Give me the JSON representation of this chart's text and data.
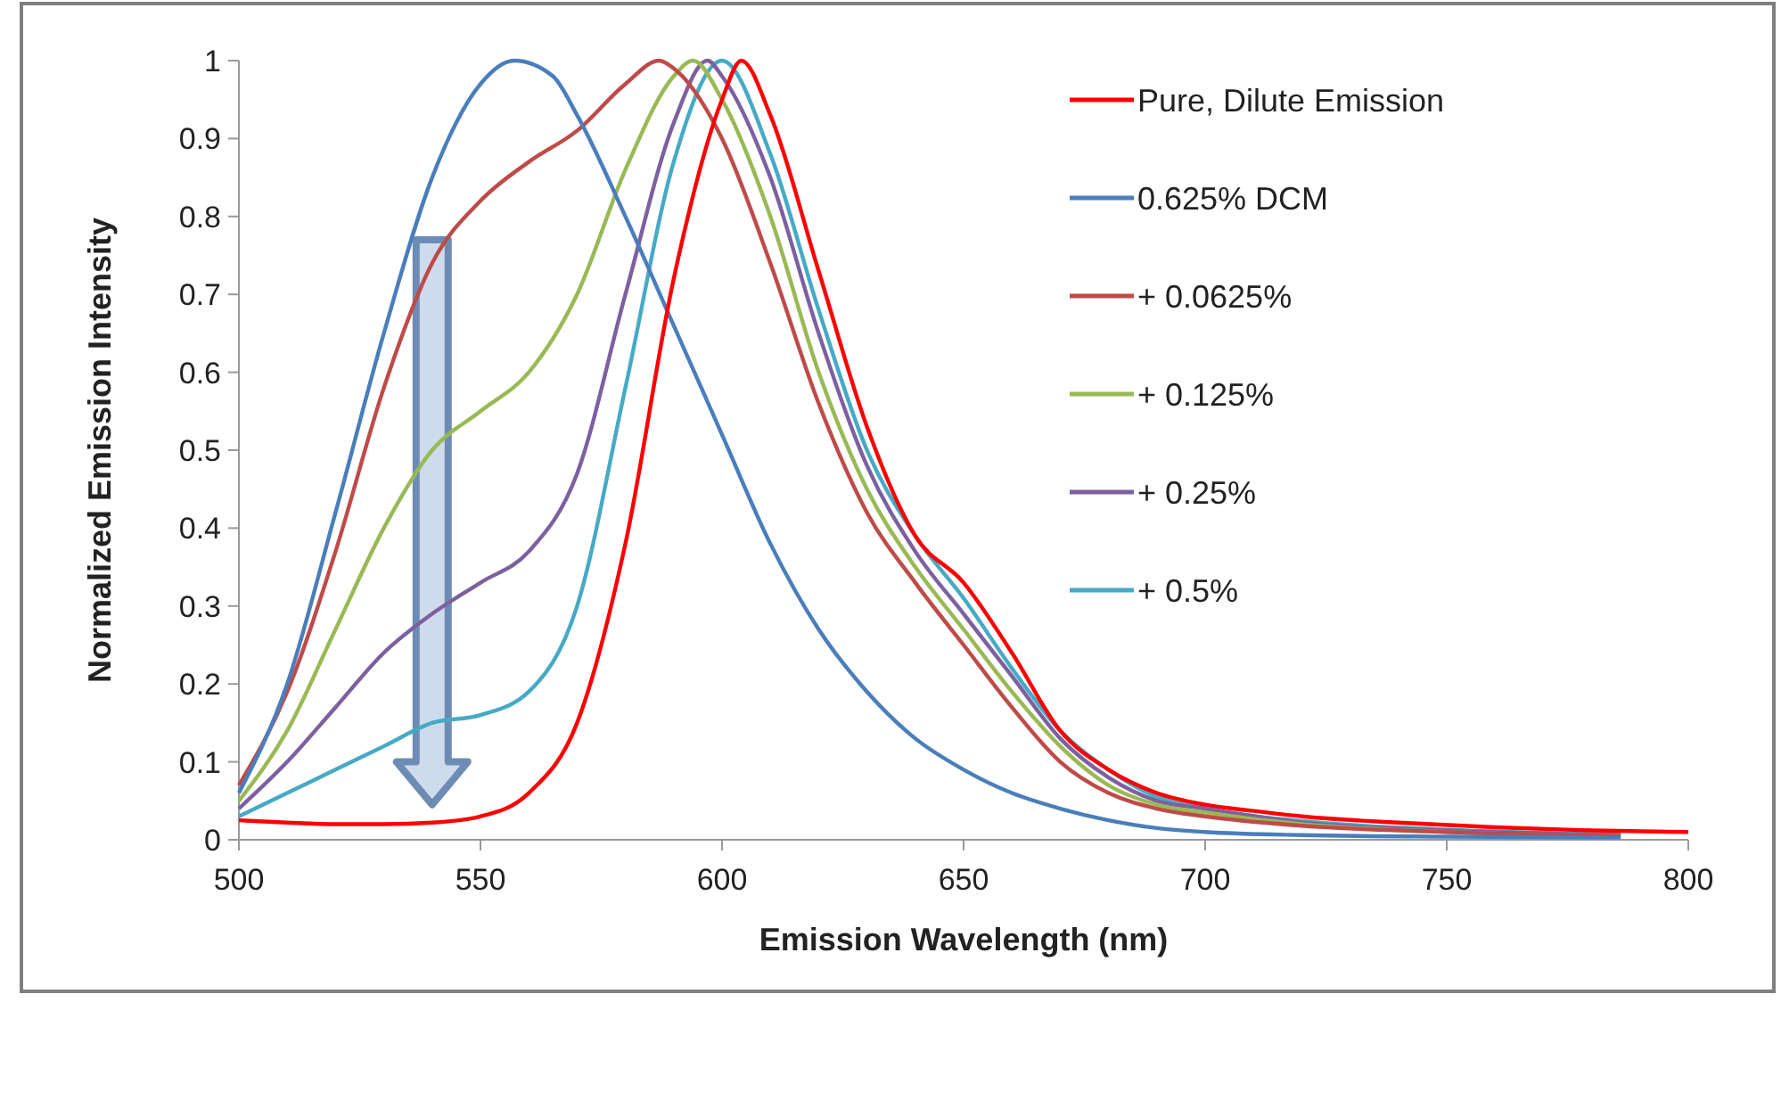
{
  "chart_data": {
    "type": "line",
    "xlabel": "Emission Wavelength (nm)",
    "ylabel": "Normalized Emission Intensity",
    "xlim": [
      500,
      800
    ],
    "xticks": [
      500,
      550,
      600,
      650,
      700,
      750,
      800
    ],
    "ylim": [
      0,
      1
    ],
    "yticks": [
      0,
      0.1,
      0.2,
      0.3,
      0.4,
      0.5,
      0.6,
      0.7,
      0.8,
      0.9,
      1
    ],
    "grid": false,
    "legend": "top right",
    "marker": "none",
    "line_style": "solid",
    "series": [
      {
        "name": "Pure, Dilute Emission",
        "color": "#ff0000",
        "x": [
          500,
          510,
          520,
          530,
          540,
          550,
          560,
          570,
          580,
          590,
          600,
          604,
          610,
          620,
          630,
          640,
          650,
          660,
          670,
          680,
          690,
          700,
          710,
          720,
          740,
          760,
          780,
          800
        ],
        "values": [
          0.025,
          0.022,
          0.02,
          0.02,
          0.022,
          0.03,
          0.06,
          0.15,
          0.38,
          0.72,
          0.95,
          1.0,
          0.93,
          0.73,
          0.53,
          0.39,
          0.33,
          0.24,
          0.14,
          0.09,
          0.06,
          0.045,
          0.037,
          0.03,
          0.022,
          0.016,
          0.012,
          0.01
        ]
      },
      {
        "name": "0.625% DCM",
        "color": "#4a7ebb",
        "x": [
          500,
          510,
          520,
          530,
          540,
          550,
          557,
          565,
          570,
          580,
          590,
          600,
          610,
          620,
          630,
          640,
          650,
          660,
          670,
          680,
          690,
          700,
          720,
          750,
          786
        ],
        "values": [
          0.06,
          0.2,
          0.42,
          0.65,
          0.85,
          0.97,
          1.0,
          0.98,
          0.93,
          0.8,
          0.66,
          0.52,
          0.38,
          0.27,
          0.19,
          0.13,
          0.09,
          0.06,
          0.04,
          0.025,
          0.015,
          0.01,
          0.006,
          0.004,
          0.003
        ]
      },
      {
        "name": "+ 0.0625%",
        "color": "#be4b48",
        "x": [
          500,
          510,
          520,
          530,
          540,
          550,
          560,
          570,
          580,
          587,
          590,
          600,
          610,
          620,
          630,
          640,
          650,
          660,
          670,
          680,
          690,
          700,
          720,
          750,
          786
        ],
        "values": [
          0.07,
          0.19,
          0.37,
          0.58,
          0.74,
          0.82,
          0.87,
          0.91,
          0.97,
          1.0,
          0.99,
          0.9,
          0.74,
          0.56,
          0.42,
          0.33,
          0.25,
          0.17,
          0.1,
          0.06,
          0.04,
          0.03,
          0.018,
          0.01,
          0.005
        ]
      },
      {
        "name": "+ 0.125%",
        "color": "#98b954",
        "x": [
          500,
          510,
          520,
          530,
          540,
          550,
          560,
          570,
          580,
          590,
          594,
          600,
          610,
          620,
          630,
          640,
          650,
          660,
          670,
          680,
          690,
          700,
          720,
          750,
          786
        ],
        "values": [
          0.05,
          0.14,
          0.27,
          0.4,
          0.5,
          0.55,
          0.6,
          0.7,
          0.86,
          0.98,
          1.0,
          0.95,
          0.8,
          0.6,
          0.45,
          0.35,
          0.27,
          0.19,
          0.12,
          0.07,
          0.045,
          0.035,
          0.02,
          0.01,
          0.005
        ]
      },
      {
        "name": "+ 0.25%",
        "color": "#7d60a0",
        "x": [
          500,
          510,
          520,
          530,
          540,
          550,
          560,
          570,
          580,
          590,
          597,
          600,
          610,
          620,
          630,
          640,
          650,
          660,
          670,
          680,
          690,
          700,
          720,
          750,
          786
        ],
        "values": [
          0.04,
          0.1,
          0.17,
          0.24,
          0.29,
          0.33,
          0.37,
          0.47,
          0.7,
          0.92,
          1.0,
          0.98,
          0.85,
          0.65,
          0.48,
          0.37,
          0.29,
          0.21,
          0.13,
          0.08,
          0.05,
          0.04,
          0.022,
          0.012,
          0.006
        ]
      },
      {
        "name": "+ 0.5%",
        "color": "#46aac5",
        "x": [
          500,
          510,
          520,
          530,
          540,
          550,
          560,
          570,
          580,
          590,
          600,
          610,
          620,
          630,
          640,
          650,
          660,
          670,
          680,
          690,
          700,
          720,
          750,
          786
        ],
        "values": [
          0.03,
          0.06,
          0.09,
          0.12,
          0.15,
          0.16,
          0.19,
          0.3,
          0.58,
          0.87,
          1.0,
          0.88,
          0.68,
          0.5,
          0.39,
          0.31,
          0.22,
          0.14,
          0.09,
          0.055,
          0.04,
          0.024,
          0.013,
          0.007
        ]
      }
    ]
  }
}
